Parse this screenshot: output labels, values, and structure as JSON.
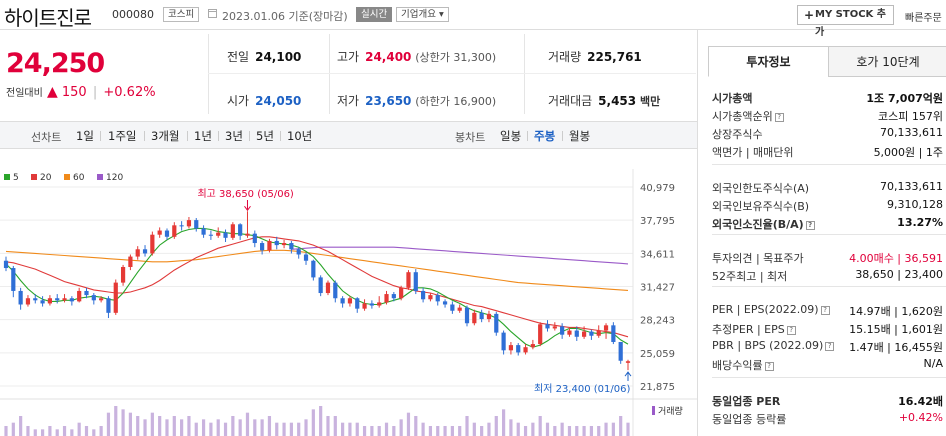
{
  "header": {
    "name": "하이트진로",
    "code": "000080",
    "market_badge": "코스피",
    "date_text": "2023.01.06  기준(장마감)",
    "realtime_badge": "실시간",
    "company_badge": "기업개요 ▾",
    "mystock_label": "MY STOCK 추가",
    "mystock_plus": "+",
    "quick_menu": "빠른주문"
  },
  "price": {
    "current": "24,250",
    "change_label": "전일대비",
    "change_icon": "▲",
    "change_value": "150",
    "sep": "|",
    "change_pct": "+0.62%"
  },
  "metrics": {
    "prev_close": {
      "label": "전일",
      "value": "24,100"
    },
    "high": {
      "label": "고가",
      "value": "24,400",
      "sub": "(상한가 31,300)"
    },
    "volume": {
      "label": "거래량",
      "value": "225,761"
    },
    "open": {
      "label": "시가",
      "value": "24,050"
    },
    "low": {
      "label": "저가",
      "value": "23,650",
      "sub": "(하한가 16,900)"
    },
    "amount": {
      "label": "거래대금",
      "value": "5,453",
      "unit": "백만"
    }
  },
  "toolbar": {
    "line_label": "선차트",
    "line_items": [
      "1일",
      "1주일",
      "3개월",
      "1년",
      "3년",
      "5년",
      "10년"
    ],
    "candle_label": "봉차트",
    "candle_items": [
      "일봉",
      "주봉",
      "월봉"
    ],
    "candle_active": 1
  },
  "chart_data": {
    "type": "candlestick",
    "legend": [
      {
        "name": "5",
        "color": "#2aa52a"
      },
      {
        "name": "20",
        "color": "#e03a3a"
      },
      {
        "name": "60",
        "color": "#f08a1a"
      },
      {
        "name": "120",
        "color": "#9a5ac8"
      }
    ],
    "y_ticks": [
      "40,979",
      "37,795",
      "34,611",
      "31,427",
      "28,243",
      "25,059",
      "21,875"
    ],
    "ylim": [
      21875,
      40979
    ],
    "high_annotation": "최고 38,650 (05/06)",
    "low_annotation": "최저 23,400 (01/06)",
    "volume_label": "거래량",
    "candles": [
      [
        33900,
        33200,
        34300,
        32900
      ],
      [
        33200,
        31000,
        33400,
        30400
      ],
      [
        31000,
        29700,
        31300,
        29200
      ],
      [
        29700,
        30300,
        30600,
        29500
      ],
      [
        30300,
        30100,
        30700,
        29800
      ],
      [
        30100,
        29800,
        30500,
        29500
      ],
      [
        29800,
        30300,
        30600,
        29600
      ],
      [
        30300,
        30100,
        30700,
        29800
      ],
      [
        30100,
        30300,
        30700,
        29900
      ],
      [
        30300,
        30000,
        30500,
        29600
      ],
      [
        30000,
        31000,
        31300,
        29900
      ],
      [
        31000,
        30600,
        31300,
        30300
      ],
      [
        30600,
        30100,
        30800,
        29700
      ],
      [
        30100,
        30300,
        30500,
        29900
      ],
      [
        30300,
        28900,
        30500,
        28400
      ],
      [
        28900,
        31800,
        32100,
        28700
      ],
      [
        31800,
        33300,
        33500,
        31500
      ],
      [
        33300,
        34300,
        34500,
        33000
      ],
      [
        34300,
        35000,
        35300,
        34000
      ],
      [
        35000,
        34600,
        35400,
        34300
      ],
      [
        34600,
        36400,
        36700,
        34400
      ],
      [
        36400,
        36800,
        37100,
        36100
      ],
      [
        36800,
        36200,
        37000,
        35900
      ],
      [
        36200,
        37300,
        37600,
        36000
      ],
      [
        37300,
        37200,
        37700,
        36800
      ],
      [
        37200,
        37800,
        38100,
        37000
      ],
      [
        37800,
        37000,
        38000,
        36700
      ],
      [
        37000,
        36400,
        37300,
        36100
      ],
      [
        36400,
        36300,
        36800,
        35900
      ],
      [
        36300,
        36600,
        37100,
        36100
      ],
      [
        36600,
        36100,
        36900,
        35700
      ],
      [
        36100,
        37400,
        37600,
        35900
      ],
      [
        37400,
        36300,
        37500,
        35900
      ],
      [
        36300,
        36500,
        38650,
        36100
      ],
      [
        36500,
        35600,
        36800,
        35200
      ],
      [
        35600,
        34900,
        35800,
        34500
      ],
      [
        34900,
        35800,
        36000,
        34700
      ],
      [
        35800,
        35400,
        36200,
        35000
      ],
      [
        35400,
        35600,
        35900,
        35100
      ],
      [
        35600,
        35000,
        35800,
        34600
      ],
      [
        35000,
        34500,
        35200,
        34100
      ],
      [
        34500,
        33900,
        34700,
        33500
      ],
      [
        33900,
        32300,
        34000,
        32000
      ],
      [
        32300,
        30800,
        32500,
        30500
      ],
      [
        30800,
        31800,
        32000,
        30600
      ],
      [
        31800,
        30300,
        32000,
        29900
      ],
      [
        30300,
        29800,
        30500,
        29400
      ],
      [
        29800,
        30300,
        30500,
        29500
      ],
      [
        30300,
        29300,
        30400,
        28900
      ],
      [
        29300,
        29800,
        30200,
        29100
      ],
      [
        29800,
        29600,
        30100,
        29300
      ],
      [
        29600,
        29900,
        30500,
        29400
      ],
      [
        29900,
        30700,
        31000,
        29700
      ],
      [
        30700,
        30300,
        30900,
        30000
      ],
      [
        30300,
        31300,
        31500,
        30100
      ],
      [
        31300,
        32800,
        33000,
        31100
      ],
      [
        32800,
        31000,
        33100,
        30700
      ],
      [
        31000,
        30200,
        31300,
        29900
      ],
      [
        30200,
        30600,
        30800,
        30000
      ],
      [
        30600,
        30000,
        30800,
        29600
      ],
      [
        30000,
        29700,
        30200,
        29400
      ],
      [
        29700,
        29100,
        30000,
        28800
      ],
      [
        29100,
        29400,
        29700,
        28900
      ],
      [
        29400,
        27900,
        29600,
        27600
      ],
      [
        27900,
        28900,
        29200,
        27700
      ],
      [
        28900,
        28300,
        29200,
        28000
      ],
      [
        28300,
        28800,
        29100,
        28000
      ],
      [
        28800,
        27000,
        29000,
        26700
      ],
      [
        27000,
        25300,
        27200,
        24900
      ],
      [
        25300,
        25800,
        26100,
        24900
      ],
      [
        25800,
        25100,
        26000,
        24800
      ],
      [
        25100,
        25600,
        25900,
        24900
      ],
      [
        25600,
        25900,
        26300,
        25400
      ],
      [
        25900,
        27800,
        28000,
        25700
      ],
      [
        27800,
        27400,
        28200,
        27100
      ],
      [
        27400,
        27600,
        28000,
        27200
      ],
      [
        27600,
        26800,
        27900,
        26400
      ],
      [
        26800,
        27200,
        27500,
        26600
      ],
      [
        27200,
        26600,
        27600,
        26200
      ],
      [
        26600,
        27100,
        27600,
        26400
      ],
      [
        27100,
        26700,
        27300,
        26300
      ],
      [
        26700,
        27200,
        27700,
        26500
      ],
      [
        27200,
        27700,
        27900,
        26400
      ],
      [
        27700,
        26100,
        28000,
        25900
      ],
      [
        26100,
        24300,
        26100,
        24000
      ],
      [
        24100,
        24250,
        24400,
        23400
      ]
    ],
    "ma5": [
      33600,
      32900,
      32000,
      31200,
      30600,
      30200,
      30000,
      30000,
      30100,
      30100,
      30300,
      30400,
      30500,
      30400,
      30200,
      30100,
      30800,
      31800,
      32800,
      33700,
      34600,
      35400,
      35900,
      36300,
      36700,
      36900,
      37000,
      37000,
      36900,
      36700,
      36600,
      36500,
      36500,
      36400,
      36300,
      36000,
      35700,
      35600,
      35500,
      35400,
      35200,
      34800,
      34300,
      33500,
      32600,
      31800,
      31000,
      30500,
      30100,
      29800,
      29700,
      29700,
      29900,
      30100,
      30300,
      30800,
      31300,
      31300,
      31200,
      30900,
      30500,
      30100,
      29800,
      29400,
      29100,
      28900,
      28700,
      28400,
      27800,
      27100,
      26500,
      25900,
      25600,
      25800,
      26200,
      26700,
      27100,
      27400,
      27400,
      27200,
      27000,
      26900,
      27000,
      26900,
      26300,
      25900
    ],
    "ma20": [
      33800,
      33700,
      33500,
      33300,
      33100,
      32800,
      32500,
      32200,
      31900,
      31700,
      31500,
      31300,
      31100,
      31000,
      30900,
      30800,
      30800,
      30900,
      31100,
      31300,
      31600,
      32000,
      32500,
      33000,
      33400,
      33800,
      34200,
      34500,
      34800,
      35100,
      35300,
      35500,
      35700,
      35900,
      36100,
      36200,
      36200,
      36100,
      36000,
      35900,
      35800,
      35600,
      35400,
      35100,
      34800,
      34400,
      34000,
      33600,
      33200,
      32800,
      32400,
      32100,
      31800,
      31500,
      31300,
      31200,
      31000,
      30900,
      30800,
      30600,
      30400,
      30200,
      30000,
      29800,
      29600,
      29500,
      29300,
      29100,
      28900,
      28700,
      28500,
      28300,
      28100,
      27900,
      27800,
      27700,
      27600,
      27500,
      27500,
      27400,
      27300,
      27200,
      27100,
      27000,
      26800,
      26600
    ],
    "ma60": [
      34800,
      34750,
      34700,
      34650,
      34600,
      34550,
      34500,
      34450,
      34400,
      34350,
      34300,
      34250,
      34200,
      34150,
      34100,
      34050,
      34000,
      33950,
      33900,
      33850,
      33800,
      33800,
      33800,
      33850,
      33900,
      33950,
      34000,
      34100,
      34200,
      34300,
      34400,
      34500,
      34600,
      34700,
      34800,
      34850,
      34900,
      34900,
      34900,
      34850,
      34800,
      34700,
      34600,
      34500,
      34400,
      34300,
      34200,
      34100,
      34000,
      33900,
      33800,
      33700,
      33600,
      33500,
      33400,
      33300,
      33200,
      33100,
      33000,
      32900,
      32800,
      32700,
      32600,
      32500,
      32400,
      32300,
      32200,
      32100,
      32000,
      31900,
      31800,
      31750,
      31700,
      31650,
      31600,
      31550,
      31500,
      31450,
      31400,
      31350,
      31300,
      31250,
      31200,
      31150,
      31100,
      31050
    ],
    "ma120": [
      null,
      null,
      null,
      null,
      null,
      null,
      null,
      null,
      null,
      null,
      null,
      null,
      null,
      null,
      null,
      null,
      null,
      null,
      null,
      null,
      null,
      null,
      null,
      null,
      null,
      null,
      null,
      null,
      null,
      null,
      null,
      null,
      null,
      null,
      null,
      null,
      null,
      null,
      null,
      35000,
      35050,
      35100,
      35150,
      35200,
      35200,
      35200,
      35200,
      35200,
      35200,
      35200,
      35200,
      35200,
      35200,
      35200,
      35150,
      35100,
      35050,
      35000,
      34950,
      34900,
      34850,
      34800,
      34750,
      34700,
      34650,
      34600,
      34550,
      34500,
      34450,
      34400,
      34350,
      34300,
      34250,
      34200,
      34150,
      34100,
      34050,
      34000,
      33950,
      33900,
      33850,
      33800,
      33750,
      33700,
      33650,
      33600
    ],
    "volume": [
      3,
      4,
      6,
      3,
      2,
      2,
      3,
      2,
      3,
      2,
      4,
      3,
      2,
      3,
      7,
      9,
      8,
      7,
      6,
      5,
      7,
      6,
      5,
      6,
      5,
      6,
      4,
      5,
      4,
      5,
      4,
      6,
      5,
      7,
      5,
      5,
      6,
      4,
      4,
      4,
      4,
      5,
      8,
      9,
      6,
      6,
      4,
      4,
      4,
      3,
      3,
      3,
      4,
      3,
      5,
      7,
      6,
      4,
      3,
      3,
      3,
      3,
      3,
      6,
      4,
      3,
      4,
      6,
      8,
      5,
      4,
      3,
      4,
      6,
      4,
      3,
      4,
      3,
      3,
      3,
      3,
      3,
      4,
      4,
      6,
      4
    ]
  },
  "invest": {
    "tab_invest": "투자정보",
    "tab_quote": "호가 10단계",
    "rows": [
      {
        "k": "시가총액",
        "v": "1조 7,007억원",
        "bold": true
      },
      {
        "k": "시가총액순위",
        "v": "코스피 157위"
      },
      {
        "k": "상장주식수",
        "v": "70,133,611"
      },
      {
        "k": "액면가 | 매매단위",
        "v": "5,000원 | 1주"
      },
      {
        "k": "외국인한도주식수(A)",
        "v": "70,133,611"
      },
      {
        "k": "외국인보유주식수(B)",
        "v": "9,310,128"
      },
      {
        "k": "외국인소진율(B/A)",
        "v": "13.27%",
        "bold": true
      },
      {
        "k": "투자의견 | 목표주가",
        "v": "4.00매수 | 36,591",
        "red": true
      },
      {
        "k": "52주최고 | 최저",
        "v": "38,650 | 23,400"
      },
      {
        "k": "PER | EPS(2022.09)",
        "v": "14.97배 | 1,620원"
      },
      {
        "k": "추정PER | EPS",
        "v": "15.15배 | 1,601원"
      },
      {
        "k": "PBR | BPS (2022.09)",
        "v": "1.47배 | 16,455원"
      },
      {
        "k": "배당수익률",
        "v": "N/A"
      },
      {
        "k": "동일업종 PER",
        "v": "16.42배",
        "bold": true
      },
      {
        "k": "동일업종 등락률",
        "v": "+0.42%",
        "red": true
      }
    ]
  },
  "colors": {
    "up": "#e0003a",
    "down": "#1d61c4",
    "up_candle": "#e53935",
    "down_candle": "#2f6fd6"
  }
}
